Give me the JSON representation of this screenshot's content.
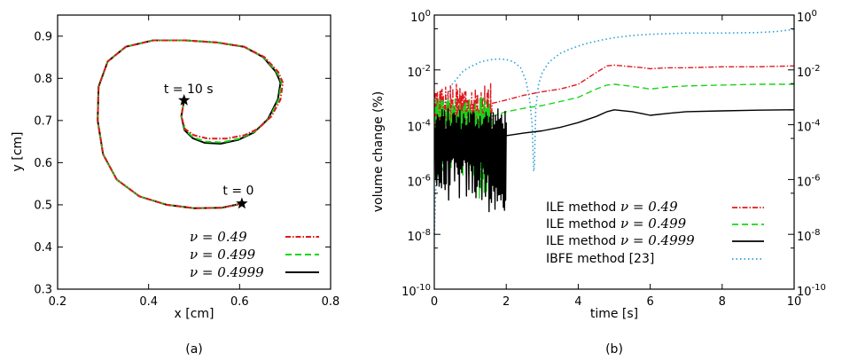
{
  "chart_data": [
    {
      "type": "line",
      "panel_label": "(a)",
      "xlabel": "x [cm]",
      "ylabel": "y [cm]",
      "xlim": [
        0.2,
        0.8
      ],
      "ylim": [
        0.3,
        0.95
      ],
      "xticks": [
        "0.2",
        "0.4",
        "0.6",
        "0.8"
      ],
      "yticks": [
        "0.3",
        "0.4",
        "0.5",
        "0.6",
        "0.7",
        "0.8",
        "0.9"
      ],
      "grid": false,
      "legend_position": "bottom-right",
      "annotations": [
        {
          "text": "t = 10 s",
          "x": 0.478,
          "y": 0.748
        },
        {
          "text": "t = 0",
          "x": 0.605,
          "y": 0.503
        }
      ],
      "series": [
        {
          "name": "ν = 0.49",
          "color": "#e0191f",
          "style": "dash-dot",
          "x": [
            0.605,
            0.56,
            0.5,
            0.44,
            0.38,
            0.33,
            0.3,
            0.288,
            0.29,
            0.31,
            0.35,
            0.41,
            0.48,
            0.55,
            0.61,
            0.655,
            0.685,
            0.695,
            0.69,
            0.67,
            0.64,
            0.61,
            0.57,
            0.53,
            0.5,
            0.48,
            0.472,
            0.478
          ],
          "y": [
            0.503,
            0.493,
            0.492,
            0.5,
            0.52,
            0.56,
            0.62,
            0.7,
            0.78,
            0.84,
            0.875,
            0.89,
            0.89,
            0.885,
            0.875,
            0.85,
            0.815,
            0.79,
            0.75,
            0.71,
            0.68,
            0.665,
            0.657,
            0.657,
            0.665,
            0.68,
            0.71,
            0.748
          ]
        },
        {
          "name": "ν = 0.499",
          "color": "#17d617",
          "style": "dashed",
          "x": [
            0.605,
            0.56,
            0.5,
            0.44,
            0.38,
            0.33,
            0.3,
            0.288,
            0.29,
            0.31,
            0.35,
            0.41,
            0.48,
            0.55,
            0.61,
            0.653,
            0.682,
            0.692,
            0.686,
            0.665,
            0.635,
            0.6,
            0.56,
            0.525,
            0.498,
            0.48,
            0.472,
            0.478
          ],
          "y": [
            0.503,
            0.493,
            0.492,
            0.5,
            0.52,
            0.56,
            0.62,
            0.7,
            0.78,
            0.84,
            0.875,
            0.89,
            0.89,
            0.885,
            0.875,
            0.85,
            0.815,
            0.79,
            0.75,
            0.705,
            0.675,
            0.657,
            0.648,
            0.65,
            0.66,
            0.678,
            0.71,
            0.748
          ]
        },
        {
          "name": "ν = 0.4999",
          "color": "#000000",
          "style": "solid",
          "x": [
            0.605,
            0.56,
            0.5,
            0.44,
            0.38,
            0.33,
            0.3,
            0.288,
            0.29,
            0.31,
            0.35,
            0.41,
            0.48,
            0.55,
            0.61,
            0.652,
            0.68,
            0.69,
            0.684,
            0.662,
            0.632,
            0.597,
            0.558,
            0.523,
            0.497,
            0.479,
            0.472,
            0.478
          ],
          "y": [
            0.503,
            0.493,
            0.492,
            0.5,
            0.52,
            0.56,
            0.62,
            0.7,
            0.78,
            0.84,
            0.875,
            0.89,
            0.89,
            0.885,
            0.875,
            0.85,
            0.815,
            0.79,
            0.75,
            0.703,
            0.672,
            0.654,
            0.645,
            0.647,
            0.658,
            0.677,
            0.71,
            0.748
          ]
        }
      ]
    },
    {
      "type": "line",
      "panel_label": "(b)",
      "xlabel": "time [s]",
      "ylabel": "volume change (%)",
      "xlim": [
        0,
        10
      ],
      "ylim": [
        1e-10,
        1
      ],
      "yscale": "log",
      "xticks": [
        "0",
        "2",
        "4",
        "6",
        "8",
        "10"
      ],
      "yticks_exp": [
        "0",
        "-2",
        "-4",
        "-6",
        "-8",
        "-10"
      ],
      "right_axis_ticks_exp": [
        "0",
        "-2",
        "-4",
        "-6",
        "-8",
        "-10"
      ],
      "grid": false,
      "legend_position": "bottom-right",
      "series": [
        {
          "name": "ILE method ν = 0.49",
          "label_text": "ILE method",
          "label_math": "ν = 0.49",
          "color": "#e0191f",
          "style": "dash-dot",
          "noisy_until": 1.6,
          "x": [
            1.6,
            2.0,
            2.5,
            3.0,
            3.5,
            4.0,
            4.5,
            4.8,
            5.0,
            5.5,
            5.8,
            6.0,
            6.5,
            7.0,
            8.0,
            9.0,
            10.0
          ],
          "y": [
            0.0006,
            0.0008,
            0.0012,
            0.0016,
            0.002,
            0.003,
            0.008,
            0.014,
            0.015,
            0.013,
            0.012,
            0.011,
            0.012,
            0.012,
            0.013,
            0.013,
            0.014
          ]
        },
        {
          "name": "ILE method ν = 0.499",
          "label_text": "ILE method",
          "label_math": "ν = 0.499",
          "color": "#17d617",
          "style": "dashed",
          "noisy_until": 1.6,
          "x": [
            1.6,
            2.0,
            2.5,
            3.0,
            3.5,
            4.0,
            4.5,
            4.8,
            5.0,
            5.5,
            5.8,
            6.0,
            6.5,
            7.0,
            8.0,
            9.0,
            10.0
          ],
          "y": [
            0.0002,
            0.0003,
            0.0004,
            0.0005,
            0.0007,
            0.001,
            0.002,
            0.0028,
            0.003,
            0.0025,
            0.0022,
            0.002,
            0.0024,
            0.0026,
            0.0028,
            0.003,
            0.003
          ]
        },
        {
          "name": "ILE method ν = 0.4999",
          "label_text": "ILE method",
          "label_math": "ν = 0.4999",
          "color": "#000000",
          "style": "solid",
          "noisy_until": 2.0,
          "x": [
            2.0,
            2.5,
            3.0,
            3.5,
            4.0,
            4.5,
            4.8,
            5.0,
            5.5,
            5.8,
            6.0,
            6.5,
            7.0,
            8.0,
            9.0,
            10.0
          ],
          "y": [
            4e-05,
            5e-05,
            6e-05,
            8e-05,
            0.00012,
            0.0002,
            0.0003,
            0.00035,
            0.0003,
            0.00025,
            0.00022,
            0.00026,
            0.0003,
            0.00032,
            0.00034,
            0.00035
          ]
        },
        {
          "name": "IBFE method [23]",
          "label_text": "IBFE method [23]",
          "label_math": "",
          "color": "#2a9fd6",
          "style": "dotted",
          "x": [
            0.0,
            0.05,
            0.15,
            0.3,
            0.5,
            0.8,
            1.0,
            1.3,
            1.6,
            1.8,
            2.0,
            2.2,
            2.4,
            2.55,
            2.65,
            2.72,
            2.76,
            2.78,
            2.82,
            2.9,
            3.0,
            3.2,
            3.5,
            3.8,
            4.2,
            4.6,
            5.0,
            5.5,
            6.0,
            7.0,
            8.0,
            9.0,
            9.5,
            10.0
          ],
          "y": [
            1e-08,
            1e-06,
            5e-05,
            0.0007,
            0.003,
            0.009,
            0.013,
            0.02,
            0.024,
            0.025,
            0.024,
            0.02,
            0.012,
            0.004,
            0.0008,
            0.0001,
            2e-06,
            3e-06,
            0.0004,
            0.003,
            0.008,
            0.02,
            0.04,
            0.06,
            0.09,
            0.12,
            0.15,
            0.18,
            0.2,
            0.22,
            0.22,
            0.23,
            0.25,
            0.3
          ]
        }
      ]
    }
  ]
}
